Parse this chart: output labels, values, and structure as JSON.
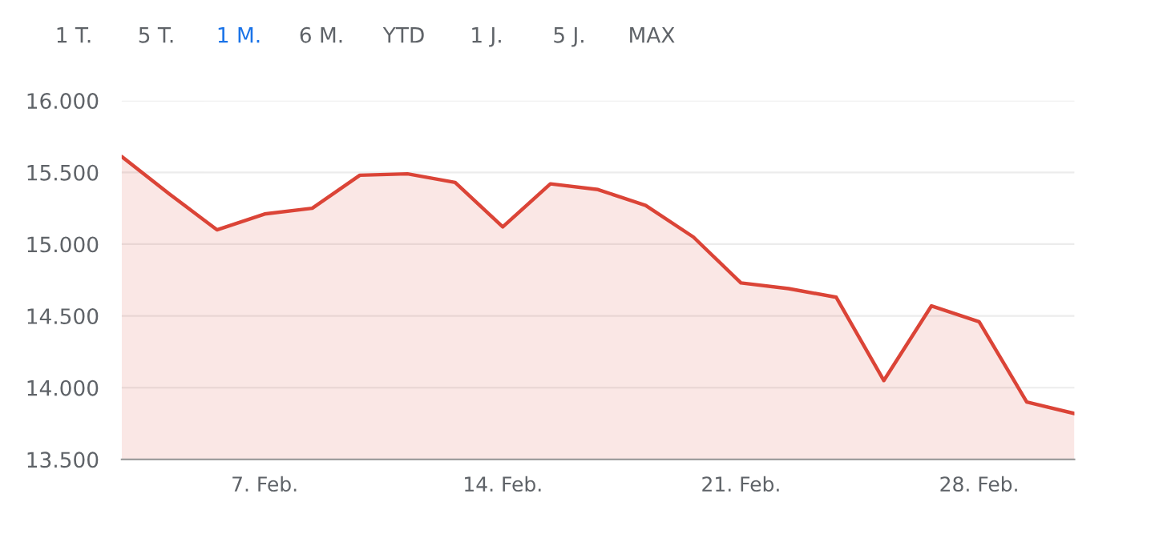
{
  "chart_data": {
    "type": "area",
    "annotations": [
      "1 T.",
      "5 T.",
      "1 M.",
      "6 M.",
      "YTD",
      "1 J.",
      "5 J.",
      "MAX"
    ],
    "categories": [
      null,
      null,
      null,
      "7. Feb.",
      null,
      null,
      null,
      null,
      "14. Feb.",
      null,
      null,
      null,
      null,
      "21. Feb.",
      null,
      null,
      null,
      null,
      "28. Feb.",
      null,
      null
    ],
    "series": [
      {
        "color": "#db4437",
        "values": [
          15610,
          15350,
          15100,
          15210,
          15250,
          15480,
          15490,
          15430,
          15120,
          15420,
          15380,
          15270,
          15050,
          14730,
          14690,
          14630,
          14050,
          14570,
          14460,
          13900,
          13820
        ]
      }
    ],
    "ylim": [
      13500,
      16000
    ],
    "yticks": [
      {
        "value": 13500,
        "label": "13.500"
      },
      {
        "value": 14000,
        "label": "14.000"
      },
      {
        "value": 14500,
        "label": "14.500"
      },
      {
        "value": 15000,
        "label": "15.000"
      },
      {
        "value": 15500,
        "label": "15.500"
      },
      {
        "value": 16000,
        "label": "16.000"
      }
    ],
    "grid": "y",
    "marker": "none",
    "line_style": "solid"
  }
}
